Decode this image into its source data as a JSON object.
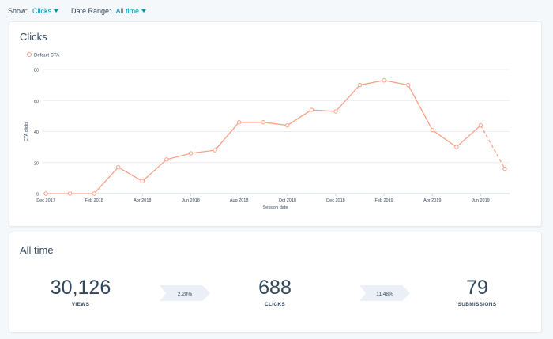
{
  "filters": {
    "show_label": "Show:",
    "show_value": "Clicks",
    "date_range_label": "Date Range:",
    "date_range_value": "All time"
  },
  "chart_card": {
    "title": "Clicks"
  },
  "chart_data": {
    "type": "line",
    "title": "Clicks",
    "xlabel": "Session date",
    "ylabel": "CTA clicks",
    "ylim": [
      0,
      80
    ],
    "yticks": [
      0,
      20,
      40,
      60,
      80
    ],
    "grid": true,
    "legend_position": "top-left",
    "tick_labels": [
      "Dec 2017",
      "Feb 2018",
      "Apr 2018",
      "Jun 2018",
      "Aug 2018",
      "Oct 2018",
      "Dec 2018",
      "Feb 2019",
      "Apr 2019",
      "Jun 2019"
    ],
    "series": [
      {
        "name": "Default CTA",
        "color": "#f8a186",
        "x": [
          "Dec 2017",
          "Jan 2018",
          "Feb 2018",
          "Mar 2018",
          "Apr 2018",
          "May 2018",
          "Jun 2018",
          "Jul 2018",
          "Aug 2018",
          "Sep 2018",
          "Oct 2018",
          "Nov 2018",
          "Dec 2018",
          "Jan 2019",
          "Feb 2019",
          "Mar 2019",
          "Apr 2019",
          "May 2019",
          "Jun 2019",
          "Jul 2019"
        ],
        "values": [
          0,
          0,
          0,
          17,
          8,
          22,
          26,
          28,
          46,
          46,
          44,
          54,
          53,
          70,
          73,
          70,
          41,
          30,
          44,
          16
        ],
        "dashed_last_segment": true
      }
    ]
  },
  "stats_card": {
    "title": "All time",
    "views_value": "30,126",
    "views_label": "VIEWS",
    "clicks_value": "688",
    "clicks_label": "CLICKS",
    "submissions_value": "79",
    "submissions_label": "SUBMISSIONS",
    "rate_views_clicks": "2.28%",
    "rate_clicks_submissions": "11.48%"
  },
  "colors": {
    "accent": "#0091ae",
    "line": "#f8a186",
    "text": "#33475b",
    "grid": "#eaeef2",
    "chevron": "#eaf0f6"
  }
}
